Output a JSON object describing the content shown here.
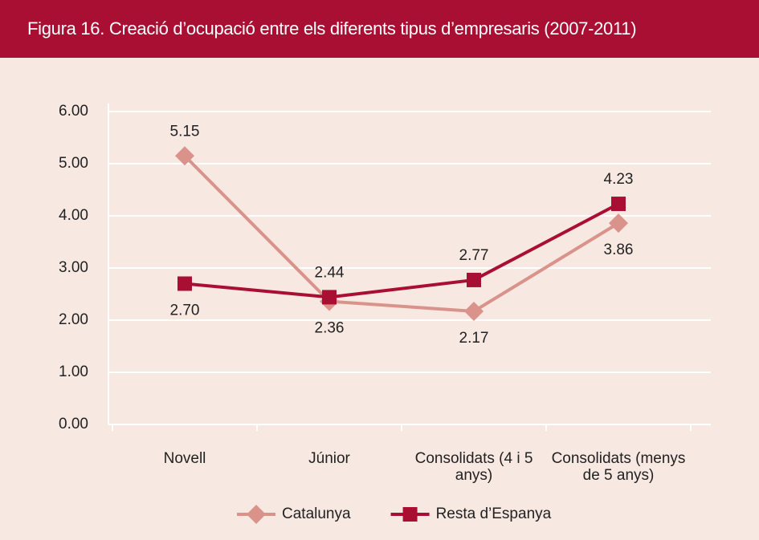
{
  "chart_data": {
    "type": "line",
    "title": "Figura 16. Creació d’ocupació entre els diferents tipus d’empresaris (2007-2011)",
    "categories": [
      "Novell",
      "Júnior",
      "Consolidats (4 i 5 anys)",
      "Consolidats (menys de 5 anys)"
    ],
    "series": [
      {
        "name": "Catalunya",
        "color": "#d9938a",
        "marker": "diamond",
        "values": [
          5.15,
          2.36,
          2.17,
          3.86
        ]
      },
      {
        "name": "Resta d’Espanya",
        "color": "#a90f32",
        "marker": "square",
        "values": [
          2.7,
          2.44,
          2.77,
          4.23
        ],
        "value_labels": [
          "2.70",
          "2.44",
          "2.77",
          "4.23"
        ]
      }
    ],
    "ylim": [
      0,
      6
    ],
    "yticks": [
      {
        "value": 0,
        "label": "0.00"
      },
      {
        "value": 1,
        "label": "1.00"
      },
      {
        "value": 2,
        "label": "2.00"
      },
      {
        "value": 3,
        "label": "3.00"
      },
      {
        "value": 4,
        "label": "4.00"
      },
      {
        "value": 5,
        "label": "5.00"
      },
      {
        "value": 6,
        "label": "6.00"
      }
    ],
    "grid": true,
    "legend": "bottom"
  }
}
